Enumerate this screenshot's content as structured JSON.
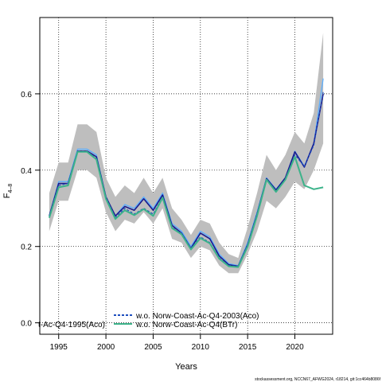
{
  "chart_data": {
    "type": "line",
    "ylabel": "F",
    "ylabel_sub": "4–8",
    "xlabel": "Years",
    "xlim": [
      1993,
      2024
    ],
    "ylim": [
      -0.03,
      0.8
    ],
    "x_ticks": [
      1995,
      2000,
      2005,
      2010,
      2015,
      2020
    ],
    "y_ticks": [
      0.0,
      0.2,
      0.4,
      0.6
    ],
    "y_tick_labels": [
      "0.0",
      "0.2",
      "0.4",
      "0.6"
    ],
    "grid": true,
    "grid_style": "dotted",
    "legend_position": "bottom",
    "x": [
      1994,
      1995,
      1996,
      1997,
      1998,
      1999,
      2000,
      2001,
      2002,
      2003,
      2004,
      2005,
      2006,
      2007,
      2008,
      2009,
      2010,
      2011,
      2012,
      2013,
      2014,
      2015,
      2016,
      2017,
      2018,
      2019,
      2020,
      2021,
      2022,
      2023
    ],
    "confidence_band": {
      "color": "#bebebe",
      "upper": [
        0.34,
        0.42,
        0.42,
        0.52,
        0.52,
        0.5,
        0.38,
        0.33,
        0.36,
        0.34,
        0.38,
        0.34,
        0.38,
        0.3,
        0.27,
        0.23,
        0.27,
        0.26,
        0.21,
        0.18,
        0.17,
        0.25,
        0.34,
        0.44,
        0.4,
        0.44,
        0.5,
        0.47,
        0.55,
        0.76
      ],
      "lower": [
        0.24,
        0.32,
        0.32,
        0.4,
        0.4,
        0.38,
        0.29,
        0.24,
        0.27,
        0.26,
        0.29,
        0.26,
        0.3,
        0.22,
        0.21,
        0.17,
        0.2,
        0.19,
        0.15,
        0.13,
        0.13,
        0.18,
        0.24,
        0.32,
        0.3,
        0.33,
        0.37,
        0.35,
        0.4,
        0.47
      ]
    },
    "series": [
      {
        "values": [
          0.28,
          0.37,
          0.37,
          0.455,
          0.455,
          0.44,
          0.33,
          0.28,
          0.31,
          0.3,
          0.33,
          0.3,
          0.34,
          0.26,
          0.24,
          0.2,
          0.24,
          0.225,
          0.18,
          0.155,
          0.15,
          0.21,
          0.29,
          0.38,
          0.35,
          0.38,
          0.45,
          0.41,
          0.47,
          0.64
        ],
        "color": "#5aaeff",
        "width": 1.3,
        "dash": ""
      },
      {
        "values": [
          0.28,
          0.365,
          0.365,
          0.45,
          0.45,
          0.435,
          0.33,
          0.28,
          0.305,
          0.295,
          0.325,
          0.295,
          0.335,
          0.255,
          0.235,
          0.195,
          0.235,
          0.22,
          0.175,
          0.152,
          0.148,
          0.205,
          0.285,
          0.378,
          0.348,
          0.38,
          0.448,
          0.408,
          0.47,
          0.6
        ],
        "color": "#1a1a8c",
        "width": 1.6,
        "dash": ""
      },
      {
        "values": [
          0.28,
          0.36,
          0.365,
          0.45,
          0.45,
          0.43,
          0.33,
          0.275,
          0.3,
          0.285,
          0.3,
          0.285,
          0.33,
          0.25,
          0.235,
          0.195,
          0.225,
          0.21,
          0.17,
          0.15,
          0.148,
          0.205,
          0.285,
          0.375,
          0.345,
          0.375,
          0.44,
          0.41,
          0.465,
          0.605
        ],
        "color": "#1e4fbf",
        "width": 1.2,
        "dash": "3,2"
      },
      {
        "values": [
          0.275,
          0.355,
          0.36,
          0.448,
          0.448,
          0.428,
          0.325,
          0.272,
          0.295,
          0.282,
          0.298,
          0.28,
          0.328,
          0.248,
          0.232,
          0.192,
          0.222,
          0.208,
          0.168,
          0.148,
          0.146,
          0.2,
          0.28,
          0.375,
          0.343,
          0.375,
          0.435,
          0.36,
          0.35,
          0.355
        ],
        "color": "#3cb38a",
        "width": 2.0,
        "dash": ""
      }
    ],
    "legend": {
      "left_text": "t-Ac-Q4-1995(Aco)",
      "entries": [
        {
          "label": "w.o. Norw-Coast-Ac-Q4-2003(Aco)",
          "color": "#1e4fbf",
          "dash": "3,2"
        },
        {
          "label": "w.o. Norw-Coast-Ac-Q4(BTr)",
          "color": "#3cb38a",
          "dash": ""
        }
      ]
    }
  },
  "footer_text": "stockassessment.org, NCCN67_AFWG2024, r18214, git:1cc464b8086f"
}
